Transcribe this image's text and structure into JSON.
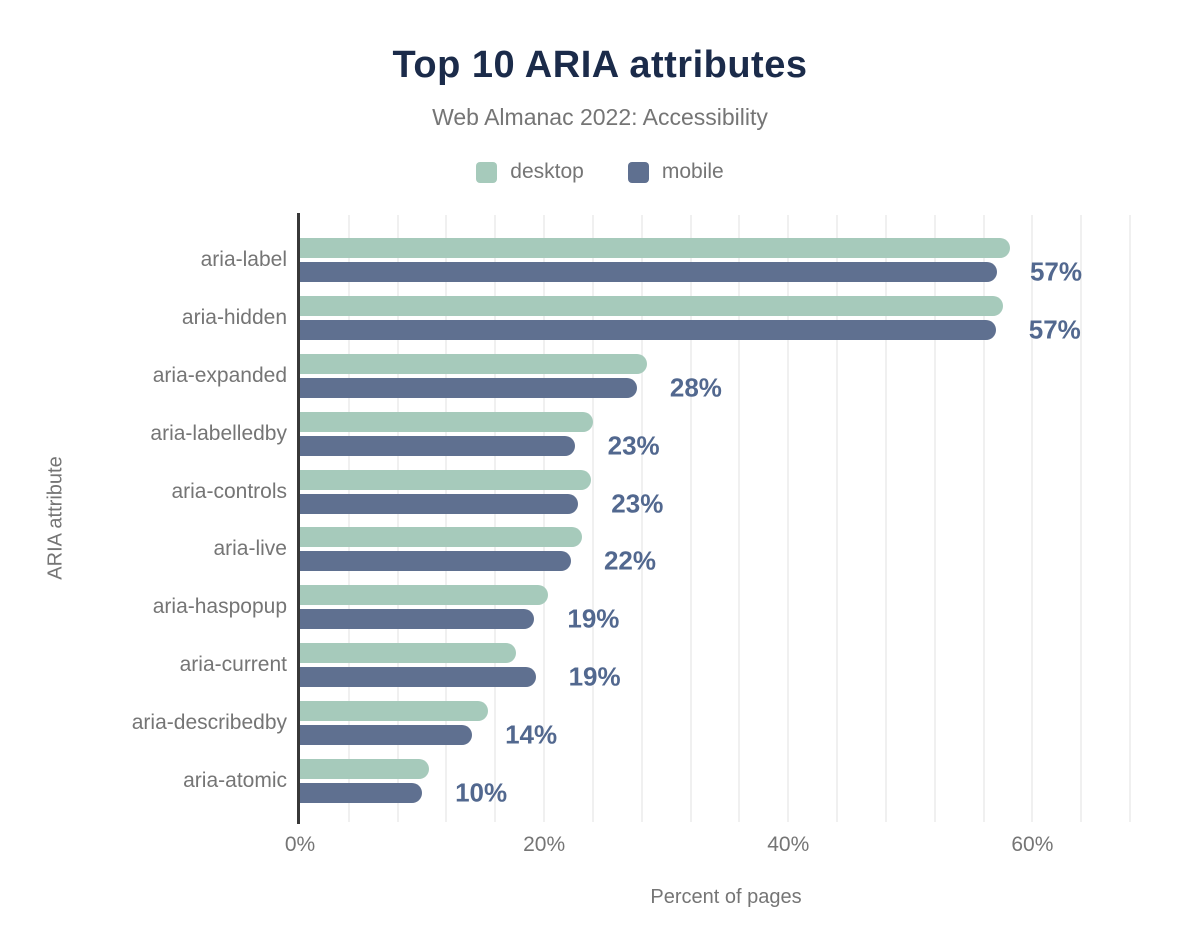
{
  "colors": {
    "title": "#1b2b4a",
    "desktop": "#a6cabb",
    "mobile": "#5f7090",
    "value_label": "#52688f",
    "muted_text": "#757575",
    "grid": "#f0f0f0",
    "axis": "#383838"
  },
  "chart_data": {
    "type": "bar",
    "orientation": "horizontal",
    "title": "Top 10 ARIA attributes",
    "subtitle": "Web Almanac 2022: Accessibility",
    "xlabel": "Percent of pages",
    "ylabel": "ARIA attribute",
    "legend_position": "top",
    "grid": {
      "step": 4,
      "max": 68
    },
    "xlim": [
      0,
      69.8
    ],
    "categories": [
      "aria-label",
      "aria-hidden",
      "aria-expanded",
      "aria-labelledby",
      "aria-controls",
      "aria-live",
      "aria-haspopup",
      "aria-current",
      "aria-describedby",
      "aria-atomic"
    ],
    "series": [
      {
        "name": "desktop",
        "color": "#a6cabb",
        "values": [
          58.2,
          57.6,
          28.4,
          24.0,
          23.8,
          23.1,
          20.3,
          17.7,
          15.4,
          10.6
        ]
      },
      {
        "name": "mobile",
        "color": "#5f7090",
        "values": [
          57.1,
          57.0,
          27.6,
          22.5,
          22.8,
          22.2,
          19.2,
          19.3,
          14.1,
          10.0
        ]
      }
    ],
    "value_labels": [
      "57%",
      "57%",
      "28%",
      "23%",
      "23%",
      "22%",
      "19%",
      "19%",
      "14%",
      "10%"
    ],
    "x_ticks": [
      {
        "value": 0,
        "label": "0%"
      },
      {
        "value": 20,
        "label": "20%"
      },
      {
        "value": 40,
        "label": "40%"
      },
      {
        "value": 60,
        "label": "60%"
      }
    ]
  }
}
